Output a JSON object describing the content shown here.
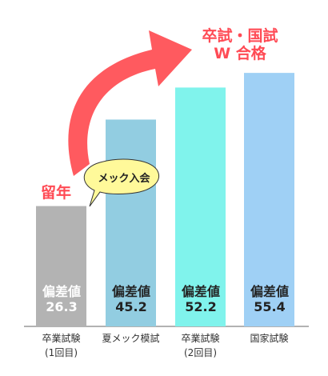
{
  "chart_data": {
    "type": "bar",
    "categories": [
      "卒業試験\n(1回目)",
      "夏メック模試",
      "卒業試験\n(2回目)",
      "国家試験"
    ],
    "values": [
      26.3,
      45.2,
      52.2,
      55.4
    ],
    "colors": [
      "#b3b3b3",
      "#92cde1",
      "#80f3ec",
      "#9fd0f5"
    ],
    "bar_label": "偏差値",
    "annotations": {
      "goal": "卒試・国試\nW 合格",
      "fail": "留年",
      "join": "メック入会"
    }
  }
}
